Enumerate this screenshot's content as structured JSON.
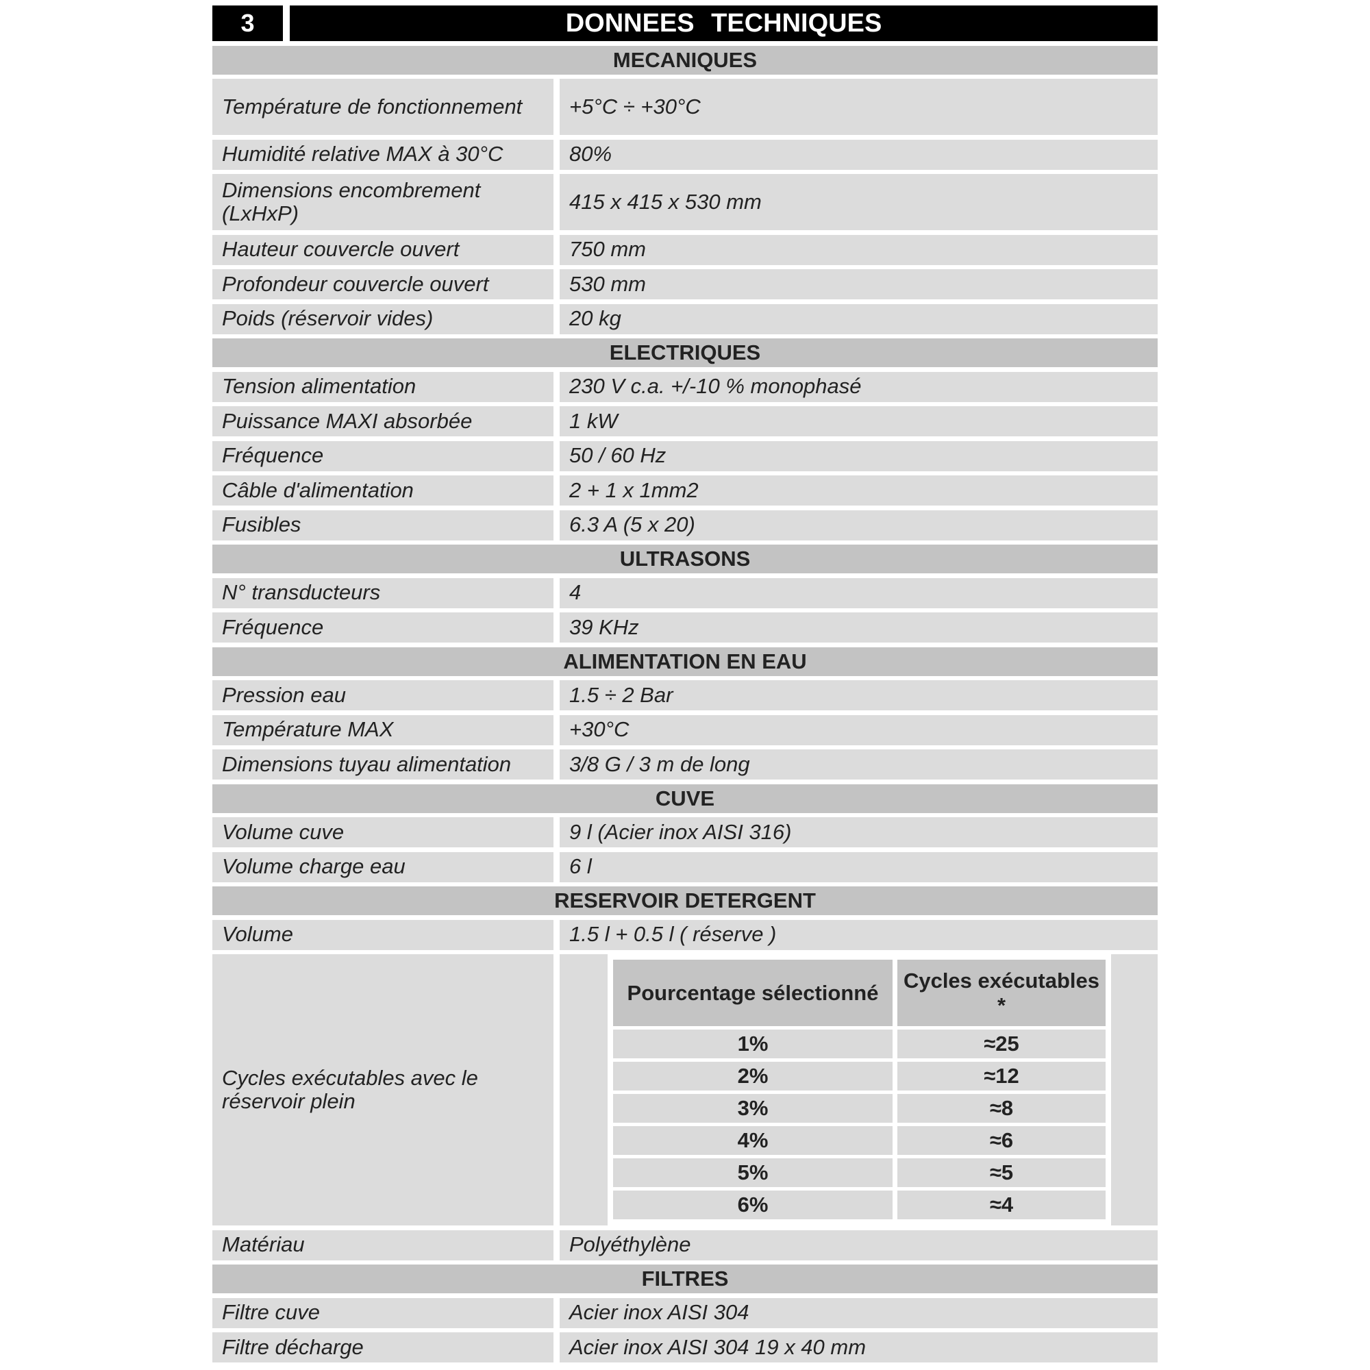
{
  "title": {
    "number": "3",
    "text": "DONNEES TECHNIQUES"
  },
  "sections": [
    {
      "header": "MECANIQUES",
      "rows": [
        {
          "label": "Température de fonctionnement",
          "value": "+5°C ÷ +30°C",
          "double": true
        },
        {
          "label": "Humidité relative MAX à 30°C",
          "value": "80%"
        },
        {
          "label": "Dimensions encombrement (LxHxP)",
          "value": "415 x 415 x 530 mm",
          "double": true
        },
        {
          "label": "Hauteur couvercle ouvert",
          "value": "750 mm"
        },
        {
          "label": "Profondeur couvercle ouvert",
          "value": "530 mm"
        },
        {
          "label": "Poids (réservoir vides)",
          "value": "20 kg"
        }
      ]
    },
    {
      "header": "ELECTRIQUES",
      "rows": [
        {
          "label": "Tension alimentation",
          "value": "230 V c.a. +/-10 %  monophasé"
        },
        {
          "label": "Puissance MAXI absorbée",
          "value": "1 kW"
        },
        {
          "label": "Fréquence",
          "value": "50 / 60 Hz"
        },
        {
          "label": "Câble d'alimentation",
          "value": "2 + 1 x 1mm2"
        },
        {
          "label": "Fusibles",
          "value": "6.3 A (5 x 20)"
        }
      ]
    },
    {
      "header": "ULTRASONS",
      "rows": [
        {
          "label": "N° transducteurs",
          "value": "4"
        },
        {
          "label": "Fréquence",
          "value": "39 KHz"
        }
      ]
    },
    {
      "header": "ALIMENTATION EN EAU",
      "rows": [
        {
          "label": "Pression eau",
          "value": "1.5 ÷ 2  Bar"
        },
        {
          "label": "Température MAX",
          "value": "+30°C"
        },
        {
          "label": "Dimensions tuyau alimentation",
          "value": "3/8 G / 3 m de long"
        }
      ]
    },
    {
      "header": "CUVE",
      "rows": [
        {
          "label": "Volume cuve",
          "value": "9 l (Acier inox AISI 316)"
        },
        {
          "label": "Volume charge eau",
          "value": "6 l"
        }
      ]
    },
    {
      "header": "RESERVOIR DETERGENT",
      "rows": [
        {
          "label": "Volume",
          "value": "1.5 l + 0.5 l ( réserve )"
        },
        {
          "label": "Cycles exécutables avec le réservoir plein",
          "cycles_table": {
            "headers": [
              "Pourcentage sélectionné",
              "Cycles exécutables *"
            ],
            "rows": [
              [
                "1%",
                "≈25"
              ],
              [
                "2%",
                "≈12"
              ],
              [
                "3%",
                "≈8"
              ],
              [
                "4%",
                "≈6"
              ],
              [
                "5%",
                "≈5"
              ],
              [
                "6%",
                "≈4"
              ]
            ]
          }
        },
        {
          "label": "Matériau",
          "value": "Polyéthylène"
        }
      ]
    },
    {
      "header": "FILTRES",
      "rows": [
        {
          "label": "Filtre cuve",
          "value": "Acier inox AISI 304"
        },
        {
          "label": "Filtre décharge",
          "value": "Acier inox AISI 304 19 x 40 mm"
        }
      ]
    }
  ]
}
